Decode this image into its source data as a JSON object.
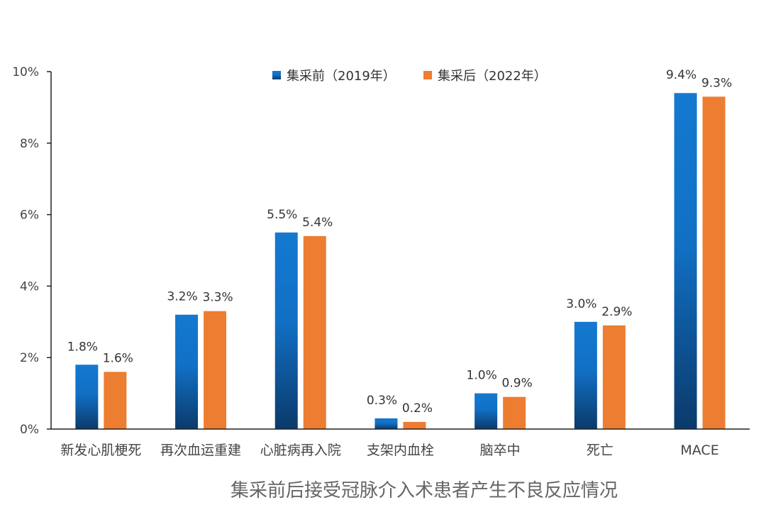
{
  "chart_data": {
    "type": "bar",
    "title": "集采前后接受冠脉介入术患者产生不良反应情况",
    "categories": [
      "新发心肌梗死",
      "再次血运重建",
      "心脏病再入院",
      "支架内血栓",
      "脑卒中",
      "死亡",
      "MACE"
    ],
    "series": [
      {
        "name": "集采前（2019年）",
        "values": [
          1.8,
          3.2,
          5.5,
          0.3,
          1.0,
          3.0,
          9.4
        ],
        "labels": [
          "1.8%",
          "3.2%",
          "5.5%",
          "0.3%",
          "1.0%",
          "3.0%",
          "9.4%"
        ],
        "color_top": "#1479d1",
        "color_bottom": "#0b3a6b"
      },
      {
        "name": "集采后（2022年）",
        "values": [
          1.6,
          3.3,
          5.4,
          0.2,
          0.9,
          2.9,
          9.3
        ],
        "labels": [
          "1.6%",
          "3.3%",
          "5.4%",
          "0.2%",
          "0.9%",
          "2.9%",
          "9.3%"
        ],
        "color": "#ed7d31"
      }
    ],
    "yticks": [
      "0%",
      "2%",
      "4%",
      "6%",
      "8%",
      "10%"
    ],
    "ytick_values": [
      0,
      2,
      4,
      6,
      8,
      10
    ],
    "ylim": [
      0,
      10
    ],
    "grid": false,
    "legend_position": "top-center"
  }
}
